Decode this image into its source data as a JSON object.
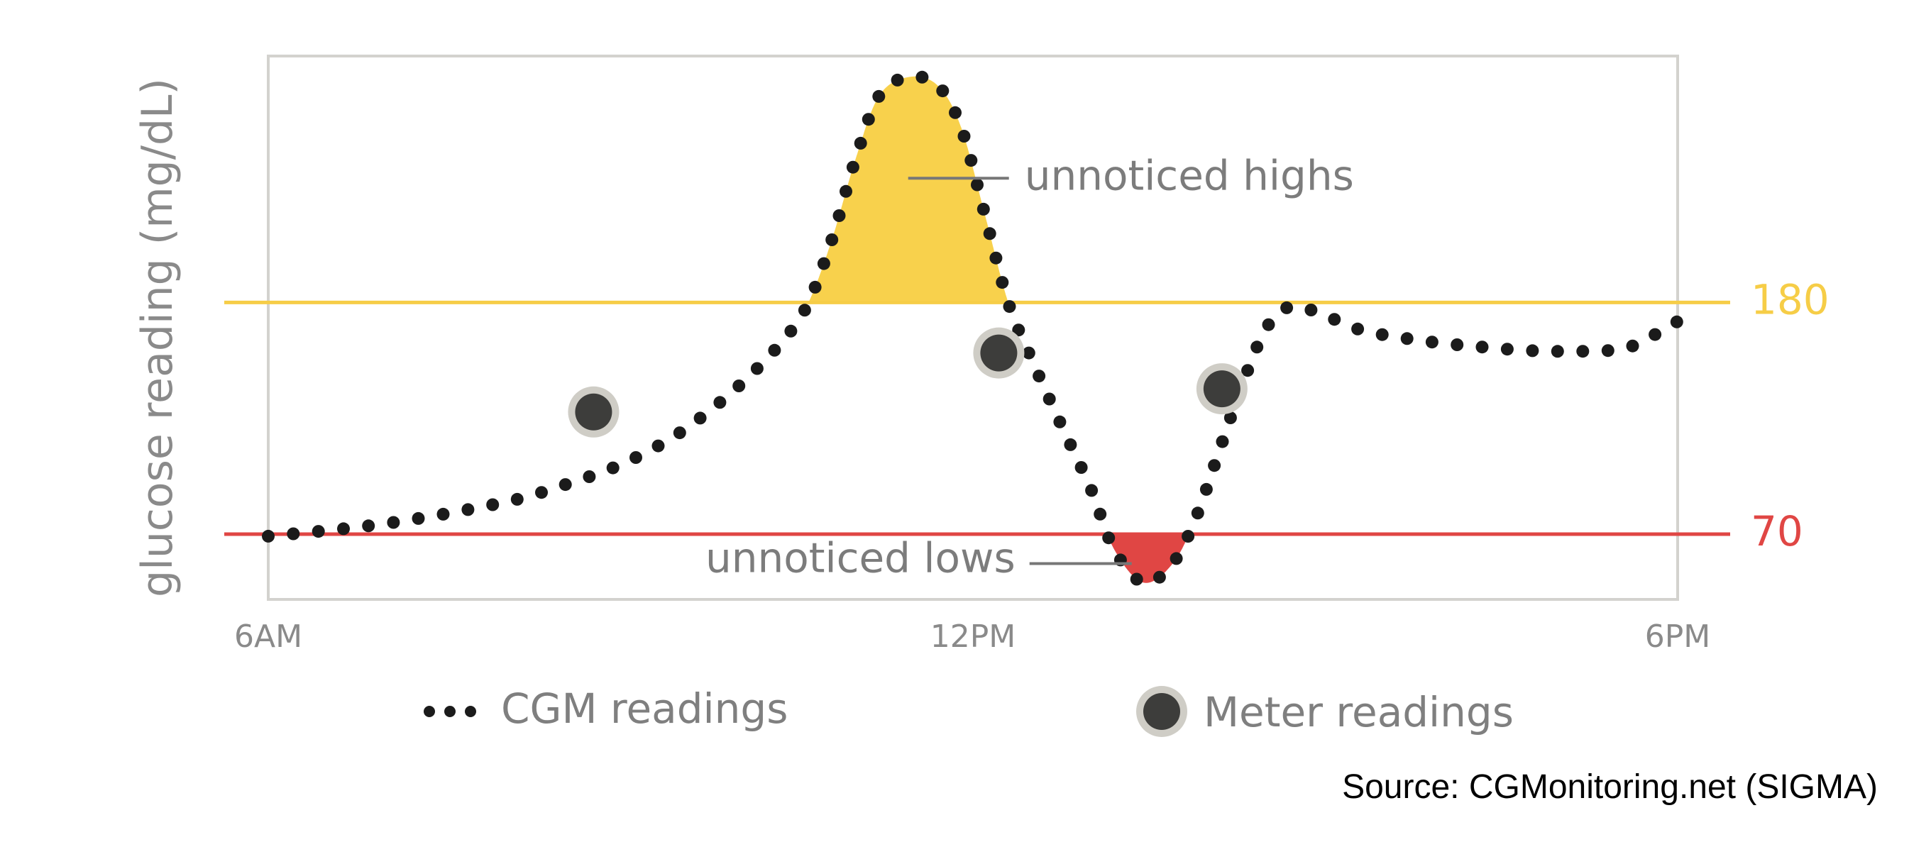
{
  "chart_data": {
    "type": "line",
    "title": "",
    "ylabel": "glucose reading (mg/dL)",
    "xlabel": "",
    "x_ticks": [
      {
        "hour": 6,
        "label": "6AM"
      },
      {
        "hour": 12,
        "label": "12PM"
      },
      {
        "hour": 18,
        "label": "6PM"
      }
    ],
    "xlim": [
      6,
      18
    ],
    "ylim": [
      39,
      297
    ],
    "grid": false,
    "thresholds": [
      {
        "value": 180,
        "label": "180",
        "color": "#f6cd47"
      },
      {
        "value": 70,
        "label": "70",
        "color": "#e04644"
      }
    ],
    "series": [
      {
        "name": "CGM readings",
        "style": "dotted",
        "color": "#1b1b1b",
        "points": [
          [
            6.0,
            69
          ],
          [
            7.0,
            75
          ],
          [
            8.0,
            85
          ],
          [
            8.5,
            93
          ],
          [
            9.0,
            103
          ],
          [
            9.5,
            118
          ],
          [
            10.0,
            140
          ],
          [
            10.4,
            163
          ],
          [
            10.6,
            180
          ],
          [
            10.8,
            210
          ],
          [
            11.0,
            248
          ],
          [
            11.2,
            278
          ],
          [
            11.45,
            287
          ],
          [
            11.7,
            283
          ],
          [
            11.9,
            263
          ],
          [
            12.1,
            222
          ],
          [
            12.3,
            180
          ],
          [
            12.5,
            153
          ],
          [
            12.75,
            122
          ],
          [
            13.0,
            92
          ],
          [
            13.2,
            63
          ],
          [
            13.45,
            47
          ],
          [
            13.7,
            56
          ],
          [
            13.9,
            78
          ],
          [
            14.1,
            110
          ],
          [
            14.3,
            142
          ],
          [
            14.5,
            168
          ],
          [
            14.7,
            178
          ],
          [
            14.95,
            175
          ],
          [
            15.3,
            167
          ],
          [
            15.8,
            162
          ],
          [
            16.3,
            159
          ],
          [
            16.8,
            157
          ],
          [
            17.3,
            157
          ],
          [
            17.6,
            159
          ],
          [
            18.0,
            171
          ]
        ]
      },
      {
        "name": "Meter readings",
        "style": "marker",
        "color": "#3d3d3b",
        "points": [
          [
            8.77,
            128
          ],
          [
            12.22,
            156
          ],
          [
            14.12,
            139
          ]
        ]
      }
    ],
    "annotations": [
      {
        "text": "unnoticed highs",
        "target": [
          11.4,
          239
        ],
        "color": "#f8d14c"
      },
      {
        "text": "unnoticed lows",
        "target": [
          13.4,
          56
        ],
        "color": "#e04644"
      }
    ],
    "legend_position": "bottom-center"
  },
  "source": "Source: CGMonitoring.net (SIGMA)"
}
